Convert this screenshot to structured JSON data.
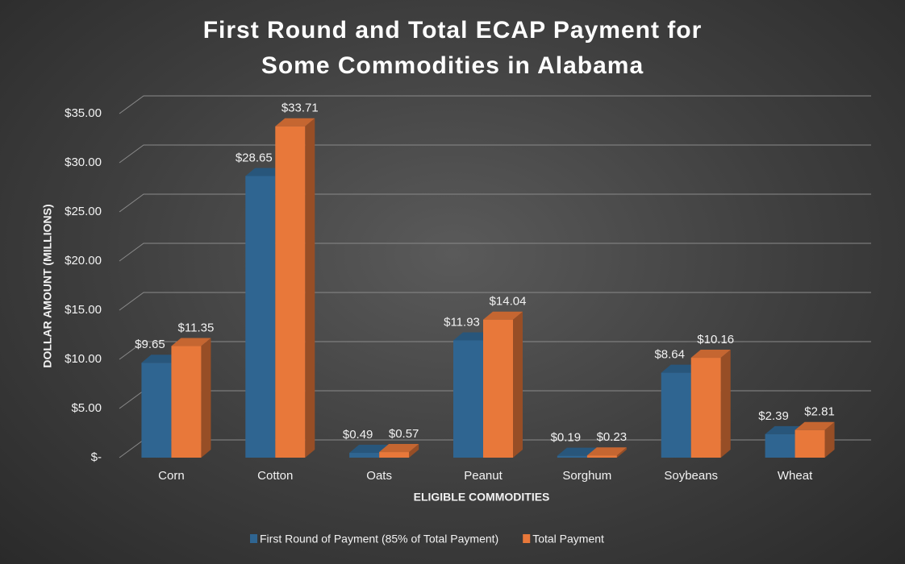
{
  "chart_data": {
    "type": "bar3d",
    "title": "First Round and Total ECAP Payment for Some Commodities in Alabama",
    "x_label": "ELIGIBLE COMMODITIES",
    "y_label": "DOLLAR AMOUNT (MILLIONS)",
    "categories": [
      "Corn",
      "Cotton",
      "Oats",
      "Peanut",
      "Sorghum",
      "Soybeans",
      "Wheat"
    ],
    "series": [
      {
        "name": "First Round of Payment (85% of Total Payment)",
        "color": "#2f6591",
        "values": [
          9.65,
          28.65,
          0.49,
          11.93,
          0.19,
          8.64,
          2.39
        ],
        "value_labels": [
          "$9.65",
          "$28.65",
          "$0.49",
          "$11.93",
          "$0.19",
          "$8.64",
          "$2.39"
        ]
      },
      {
        "name": "Total Payment",
        "color": "#e8783a",
        "values": [
          11.35,
          33.71,
          0.57,
          14.04,
          0.23,
          10.16,
          2.81
        ],
        "value_labels": [
          "$11.35",
          "$33.71",
          "$0.57",
          "$14.04",
          "$0.23",
          "$10.16",
          "$2.81"
        ]
      }
    ],
    "ylim": [
      0,
      35
    ],
    "yticks": [
      {
        "value": 0,
        "label": "$-"
      },
      {
        "value": 5,
        "label": "$5.00"
      },
      {
        "value": 10,
        "label": "$10.00"
      },
      {
        "value": 15,
        "label": "$15.00"
      },
      {
        "value": 20,
        "label": "$20.00"
      },
      {
        "value": 25,
        "label": "$25.00"
      },
      {
        "value": 30,
        "label": "$30.00"
      },
      {
        "value": 35,
        "label": "$35.00"
      }
    ],
    "grid": true
  }
}
